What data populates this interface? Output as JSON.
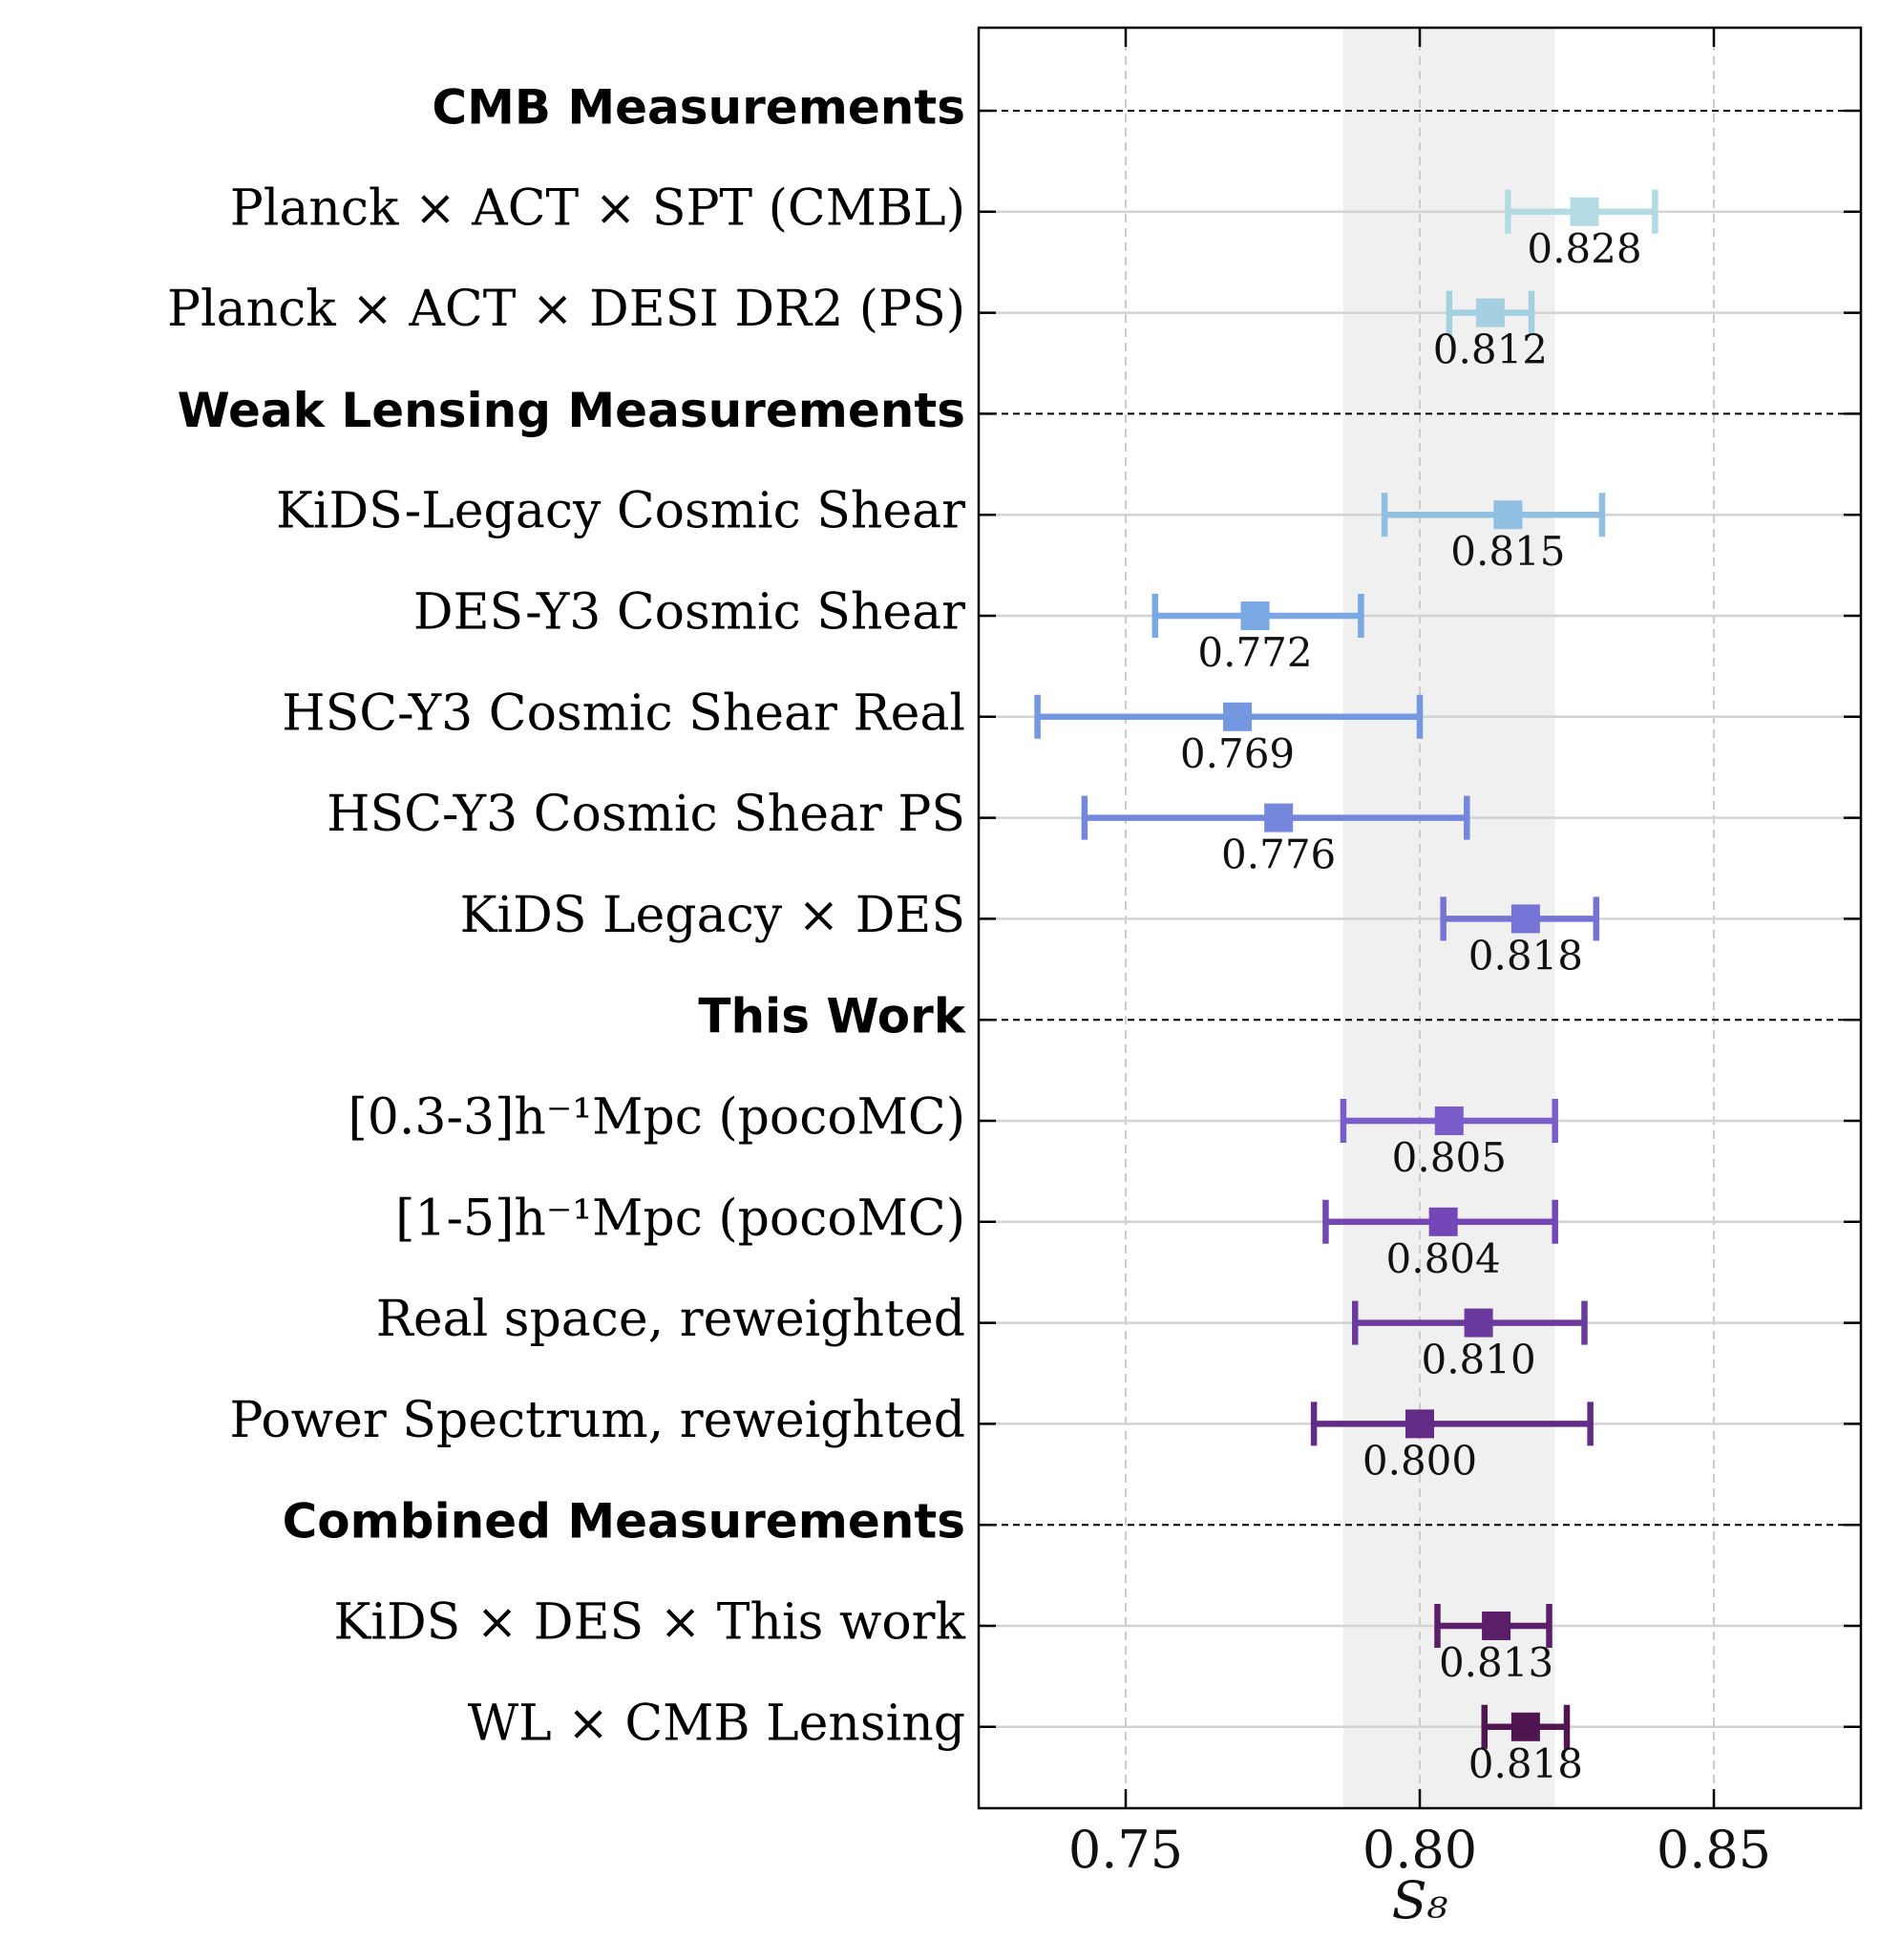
{
  "chart_data": {
    "type": "errorbar",
    "xlabel": "S₈",
    "xlim": [
      0.725,
      0.875
    ],
    "xticks": [
      {
        "value": 0.75,
        "label": "0.75"
      },
      {
        "value": 0.8,
        "label": "0.80"
      },
      {
        "value": 0.85,
        "label": "0.85"
      }
    ],
    "band": [
      0.787,
      0.823
    ],
    "groups": [
      {
        "title": "CMB Measurements",
        "rows": [
          {
            "label": "Planck × ACT × SPT (CMBL)",
            "value": 0.828,
            "low": 0.815,
            "high": 0.84,
            "value_label": "0.828",
            "color": "#b3dbe3"
          },
          {
            "label": "Planck × ACT × DESI DR2 (PS)",
            "value": 0.812,
            "low": 0.805,
            "high": 0.819,
            "value_label": "0.812",
            "color": "#a5d0e2"
          }
        ]
      },
      {
        "title": "Weak Lensing Measurements",
        "rows": [
          {
            "label": "KiDS-Legacy Cosmic Shear",
            "value": 0.815,
            "low": 0.794,
            "high": 0.831,
            "value_label": "0.815",
            "color": "#90bfe2"
          },
          {
            "label": "DES-Y3 Cosmic Shear",
            "value": 0.772,
            "low": 0.755,
            "high": 0.79,
            "value_label": "0.772",
            "color": "#7aa8e2"
          },
          {
            "label": "HSC-Y3 Cosmic Shear Real",
            "value": 0.769,
            "low": 0.735,
            "high": 0.8,
            "value_label": "0.769",
            "color": "#7498e0"
          },
          {
            "label": "HSC-Y3 Cosmic Shear PS",
            "value": 0.776,
            "low": 0.743,
            "high": 0.808,
            "value_label": "0.776",
            "color": "#7487dc"
          },
          {
            "label": "KiDS Legacy × DES",
            "value": 0.818,
            "low": 0.804,
            "high": 0.83,
            "value_label": "0.818",
            "color": "#7574d6"
          }
        ]
      },
      {
        "title": "This Work",
        "rows": [
          {
            "label": "[0.3-3]h⁻¹Mpc (pocoMC)",
            "value": 0.805,
            "low": 0.787,
            "high": 0.823,
            "value_label": "0.805",
            "color": "#7a5ccb"
          },
          {
            "label": "[1-5]h⁻¹Mpc (pocoMC)",
            "value": 0.804,
            "low": 0.784,
            "high": 0.823,
            "value_label": "0.804",
            "color": "#7347b6"
          },
          {
            "label": "Real space, reweighted",
            "value": 0.81,
            "low": 0.789,
            "high": 0.828,
            "value_label": "0.810",
            "color": "#6a3a9e"
          },
          {
            "label": "Power Spectrum, reweighted",
            "value": 0.8,
            "low": 0.782,
            "high": 0.829,
            "value_label": "0.800",
            "color": "#622c86"
          }
        ]
      },
      {
        "title": "Combined Measurements",
        "rows": [
          {
            "label": "KiDS × DES × This  work",
            "value": 0.813,
            "low": 0.803,
            "high": 0.822,
            "value_label": "0.813",
            "color": "#5a1f68"
          },
          {
            "label": "WL × CMB  Lensing",
            "value": 0.818,
            "low": 0.811,
            "high": 0.825,
            "value_label": "0.818",
            "color": "#4f1550"
          }
        ]
      }
    ]
  }
}
